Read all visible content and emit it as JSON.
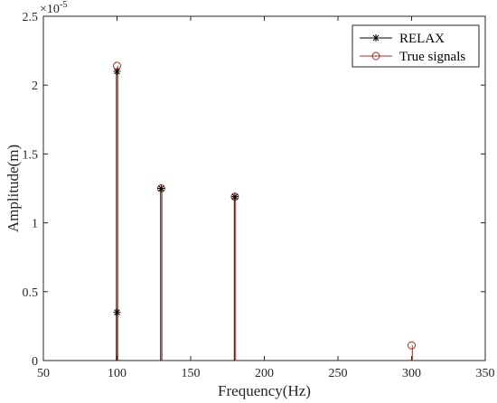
{
  "chart_data": {
    "type": "stem",
    "xlabel": "Frequency(Hz)",
    "ylabel": "Amplitude(m)",
    "exponent_label": "×10",
    "exponent_value": "-5",
    "xlim": [
      50,
      350
    ],
    "ylim": [
      0,
      2.5
    ],
    "x_ticks": [
      50,
      100,
      150,
      200,
      250,
      300,
      350
    ],
    "x_tick_labels": [
      "50",
      "100",
      "150",
      "200",
      "250",
      "300",
      "350"
    ],
    "y_ticks": [
      0,
      0.5,
      1,
      1.5,
      2,
      2.5
    ],
    "y_tick_labels": [
      "0",
      "0.5",
      "1",
      "1.5",
      "2",
      "2.5"
    ],
    "grid": false,
    "legend_position": "top-right",
    "series": [
      {
        "name": "RELAX",
        "marker": "asterisk",
        "color": "#000000",
        "points": [
          {
            "x": 100,
            "y": 0.35
          },
          {
            "x": 100,
            "y": 2.1
          },
          {
            "x": 130,
            "y": 1.25
          },
          {
            "x": 180,
            "y": 1.19
          }
        ]
      },
      {
        "name": "True signals",
        "marker": "circle",
        "color": "#a0321f",
        "points": [
          {
            "x": 100,
            "y": 2.14
          },
          {
            "x": 130,
            "y": 1.25
          },
          {
            "x": 180,
            "y": 1.19
          },
          {
            "x": 300,
            "y": 0.11
          }
        ]
      }
    ]
  }
}
